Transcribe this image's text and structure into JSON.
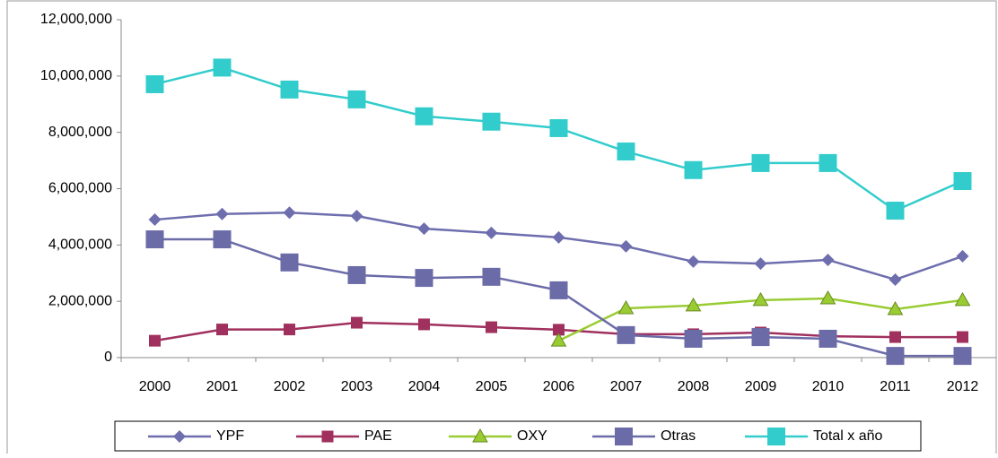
{
  "chart_data": {
    "type": "line",
    "categories": [
      "2000",
      "2001",
      "2002",
      "2003",
      "2004",
      "2005",
      "2006",
      "2007",
      "2008",
      "2009",
      "2010",
      "2011",
      "2012"
    ],
    "series": [
      {
        "name": "YPF",
        "color": "#6e6eae",
        "marker": "diamond",
        "values": [
          4900000,
          5100000,
          5150000,
          5030000,
          4580000,
          4430000,
          4270000,
          3950000,
          3410000,
          3340000,
          3470000,
          2770000,
          3600000
        ]
      },
      {
        "name": "PAE",
        "color": "#a0305e",
        "marker": "square",
        "values": [
          600000,
          1000000,
          1000000,
          1240000,
          1180000,
          1080000,
          990000,
          830000,
          830000,
          890000,
          760000,
          730000,
          730000
        ]
      },
      {
        "name": "OXY",
        "color": "#99cc33",
        "marker": "triangle",
        "values": [
          null,
          null,
          null,
          null,
          null,
          null,
          600000,
          1750000,
          1850000,
          2040000,
          2100000,
          1720000,
          2040000
        ]
      },
      {
        "name": "Otras",
        "color": "#6b6ba8",
        "marker": "bigsquare",
        "values": [
          4200000,
          4200000,
          3380000,
          2930000,
          2830000,
          2870000,
          2390000,
          800000,
          670000,
          730000,
          670000,
          60000,
          60000
        ]
      },
      {
        "name": "Total x año",
        "color": "#33cccc",
        "marker": "bigsquare",
        "values": [
          9710000,
          10300000,
          9520000,
          9170000,
          8570000,
          8380000,
          8150000,
          7320000,
          6660000,
          6910000,
          6910000,
          5220000,
          6270000
        ]
      }
    ],
    "ylim": [
      0,
      12000000
    ],
    "yticks": [
      0,
      {
        "value": 2000000,
        "label": "2,000,000"
      },
      {
        "value": 4000000,
        "label": "4,000,000"
      },
      {
        "value": 6000000,
        "label": "6,000,000"
      },
      {
        "value": 8000000,
        "label": "8,000,000"
      },
      {
        "value": 10000000,
        "label": "10,000,000"
      },
      {
        "value": 12000000,
        "label": "12,000,000"
      }
    ],
    "legend": "bottom"
  }
}
